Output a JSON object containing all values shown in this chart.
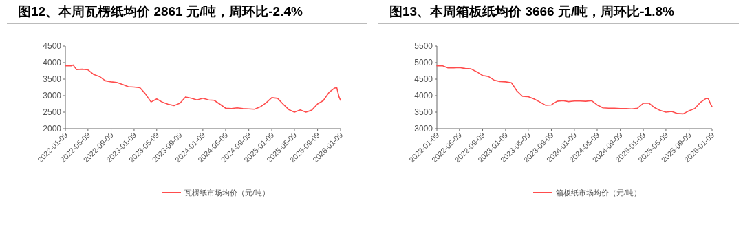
{
  "chart_data": [
    {
      "type": "line",
      "title": "图12、本周瓦楞纸均价 2861 元/吨，周环比-2.4%",
      "legend": "bottom",
      "grid": false,
      "marker": "none",
      "line_style": "solid",
      "x": [
        "2022-01-09",
        "2022-02-09",
        "2022-02-19",
        "2022-03-09",
        "2022-04-09",
        "2022-05-09",
        "2022-06-09",
        "2022-07-09",
        "2022-08-09",
        "2022-09-09",
        "2022-10-09",
        "2022-11-09",
        "2022-12-09",
        "2023-01-09",
        "2023-02-09",
        "2023-03-09",
        "2023-04-09",
        "2023-05-09",
        "2023-06-09",
        "2023-07-09",
        "2023-08-09",
        "2023-09-09",
        "2023-10-09",
        "2023-11-09",
        "2023-12-09",
        "2024-01-09",
        "2024-02-09",
        "2024-03-09",
        "2024-04-09",
        "2024-05-09",
        "2024-06-09",
        "2024-07-09",
        "2024-08-09",
        "2024-09-09",
        "2024-10-09",
        "2024-11-09",
        "2024-12-09",
        "2025-01-09",
        "2025-02-09",
        "2025-03-09",
        "2025-04-09",
        "2025-05-09",
        "2025-06-09",
        "2025-07-09",
        "2025-08-09",
        "2025-09-09",
        "2025-10-09",
        "2025-11-09",
        "2025-12-09",
        "2025-12-20",
        "2026-01-01",
        "2026-01-09"
      ],
      "series": [
        {
          "name": "瓦楞纸市场均价（元/吨）",
          "color": "#ff4d4d",
          "values": [
            3900,
            3900,
            3930,
            3790,
            3800,
            3780,
            3640,
            3580,
            3450,
            3420,
            3400,
            3340,
            3270,
            3260,
            3240,
            3060,
            2810,
            2900,
            2800,
            2740,
            2700,
            2770,
            2960,
            2920,
            2870,
            2920,
            2870,
            2860,
            2740,
            2620,
            2610,
            2630,
            2610,
            2600,
            2590,
            2660,
            2780,
            2940,
            2920,
            2750,
            2580,
            2500,
            2570,
            2500,
            2560,
            2750,
            2850,
            3100,
            3230,
            3240,
            2960,
            2861
          ]
        }
      ],
      "xlim": [
        "2022-01-09",
        "2026-01-09"
      ],
      "xticks": [
        "2022-01-09",
        "2022-05-09",
        "2022-09-09",
        "2023-01-09",
        "2023-05-09",
        "2023-09-09",
        "2024-01-09",
        "2024-05-09",
        "2024-09-09",
        "2025-01-09",
        "2025-05-09",
        "2025-09-09",
        "2026-01-09"
      ],
      "ylim": [
        2000,
        4500
      ],
      "yticks": [
        2000,
        2500,
        3000,
        3500,
        4000,
        4500
      ]
    },
    {
      "type": "line",
      "title": "图13、本周箱板纸均价 3666 元/吨，周环比-1.8%",
      "legend": "bottom",
      "grid": false,
      "marker": "none",
      "line_style": "solid",
      "x": [
        "2022-01-09",
        "2022-02-09",
        "2022-03-09",
        "2022-04-09",
        "2022-05-09",
        "2022-06-09",
        "2022-07-09",
        "2022-08-09",
        "2022-09-09",
        "2022-10-09",
        "2022-11-09",
        "2022-12-09",
        "2023-01-09",
        "2023-02-09",
        "2023-03-09",
        "2023-04-09",
        "2023-05-09",
        "2023-06-09",
        "2023-07-09",
        "2023-08-09",
        "2023-09-09",
        "2023-10-09",
        "2023-11-09",
        "2023-12-09",
        "2024-01-09",
        "2024-02-09",
        "2024-03-09",
        "2024-04-09",
        "2024-05-09",
        "2024-06-09",
        "2024-07-09",
        "2024-08-09",
        "2024-09-09",
        "2024-10-09",
        "2024-11-09",
        "2024-12-09",
        "2025-01-09",
        "2025-02-09",
        "2025-03-09",
        "2025-04-09",
        "2025-05-09",
        "2025-06-09",
        "2025-07-09",
        "2025-08-09",
        "2025-09-09",
        "2025-10-09",
        "2025-11-09",
        "2025-12-09",
        "2025-12-20",
        "2026-01-01",
        "2026-01-09"
      ],
      "series": [
        {
          "name": "箱板纸市场均价（元/吨）",
          "color": "#ff4d4d",
          "values": [
            4900,
            4900,
            4840,
            4840,
            4850,
            4820,
            4810,
            4720,
            4610,
            4580,
            4470,
            4430,
            4420,
            4390,
            4150,
            3980,
            3970,
            3900,
            3810,
            3710,
            3720,
            3830,
            3850,
            3820,
            3840,
            3840,
            3830,
            3850,
            3720,
            3630,
            3620,
            3620,
            3610,
            3610,
            3600,
            3620,
            3770,
            3770,
            3640,
            3550,
            3500,
            3520,
            3460,
            3450,
            3540,
            3610,
            3800,
            3920,
            3910,
            3750,
            3666
          ]
        }
      ],
      "xlim": [
        "2022-01-09",
        "2026-01-09"
      ],
      "xticks": [
        "2022-01-09",
        "2022-05-09",
        "2022-09-09",
        "2023-01-09",
        "2023-05-09",
        "2023-09-09",
        "2024-01-09",
        "2024-05-09",
        "2024-09-09",
        "2025-01-09",
        "2025-05-09",
        "2025-09-09",
        "2026-01-09"
      ],
      "ylim": [
        3000,
        5500
      ],
      "yticks": [
        3000,
        3500,
        4000,
        4500,
        5000,
        5500
      ]
    }
  ]
}
